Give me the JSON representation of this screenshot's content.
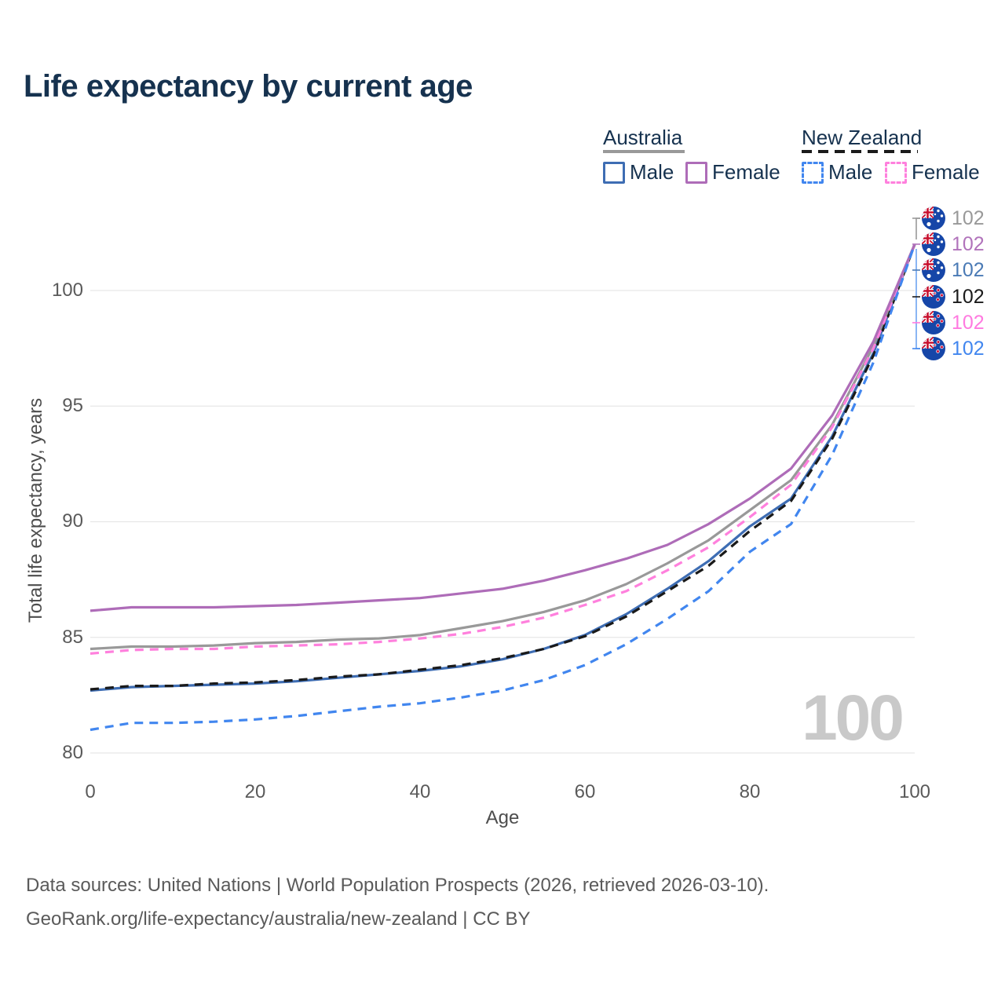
{
  "title": "Life expectancy by current age",
  "legend": {
    "groups": [
      {
        "label": "Australia",
        "line_style": "solid",
        "line_color": "#999999",
        "items": [
          {
            "label": "Male",
            "color": "#3e6db3",
            "dashed": false
          },
          {
            "label": "Female",
            "color": "#ae6cb8",
            "dashed": false
          }
        ]
      },
      {
        "label": "New Zealand",
        "line_style": "dashed",
        "line_color": "#1a1a1a",
        "items": [
          {
            "label": "Male",
            "color": "#4186ef",
            "dashed": true
          },
          {
            "label": "Female",
            "color": "#ff80dd",
            "dashed": true
          }
        ]
      }
    ]
  },
  "axes": {
    "x_label": "Age",
    "y_label": "Total life expectancy, years",
    "x_ticks": [
      "0",
      "20",
      "40",
      "60",
      "80",
      "100"
    ],
    "y_ticks": [
      "100",
      "95",
      "90",
      "85",
      "80"
    ]
  },
  "end_labels": {
    "rows": [
      {
        "flag": "au",
        "series": "Australia",
        "value": "102",
        "color": "#999999"
      },
      {
        "flag": "au",
        "series": "Australia Female",
        "value": "102",
        "color": "#b173bb"
      },
      {
        "flag": "au",
        "series": "Australia Male",
        "value": "102",
        "color": "#4a7ab5"
      },
      {
        "flag": "nz",
        "series": "New Zealand",
        "value": "102",
        "color": "#1a1a1a"
      },
      {
        "flag": "nz",
        "series": "New Zealand Female",
        "value": "102",
        "color": "#ff7ae0"
      },
      {
        "flag": "nz",
        "series": "New Zealand Male",
        "value": "102",
        "color": "#4186ef"
      }
    ]
  },
  "watermark": "100",
  "footer": {
    "line1": "Data sources: United Nations | World Population Prospects (2026, retrieved 2026-03-10).",
    "line2": "GeoRank.org/life-expectancy/australia/new-zealand | CC BY"
  },
  "chart_data": {
    "type": "line",
    "title": "Life expectancy by current age",
    "xlabel": "Age",
    "ylabel": "Total life expectancy, years",
    "xlim": [
      0,
      100
    ],
    "ylim": [
      79.5,
      103
    ],
    "xticks": [
      0,
      20,
      40,
      60,
      80,
      100
    ],
    "yticks": [
      80,
      85,
      90,
      95,
      100
    ],
    "grid": "horizontal-only",
    "legend_position": "top-right",
    "x": [
      0,
      5,
      10,
      15,
      20,
      25,
      30,
      35,
      40,
      45,
      50,
      55,
      60,
      65,
      70,
      75,
      80,
      85,
      90,
      95,
      100
    ],
    "series": [
      {
        "name": "Australia Male",
        "color": "#3e6db3",
        "dashed": false,
        "values": [
          82.7,
          82.85,
          82.9,
          82.95,
          83.0,
          83.1,
          83.25,
          83.4,
          83.55,
          83.75,
          84.05,
          84.5,
          85.1,
          86.0,
          87.1,
          88.3,
          89.8,
          91.0,
          93.7,
          97.3,
          102
        ]
      },
      {
        "name": "New Zealand",
        "color": "#1a1a1a",
        "dashed": true,
        "values": [
          82.75,
          82.9,
          82.9,
          83.0,
          83.05,
          83.15,
          83.3,
          83.4,
          83.6,
          83.8,
          84.1,
          84.5,
          85.05,
          85.9,
          87.0,
          88.1,
          89.6,
          90.9,
          93.6,
          97.2,
          102
        ]
      },
      {
        "name": "Australia",
        "color": "#999999",
        "dashed": false,
        "values": [
          84.5,
          84.6,
          84.6,
          84.65,
          84.75,
          84.8,
          84.9,
          84.95,
          85.1,
          85.4,
          85.7,
          86.1,
          86.6,
          87.3,
          88.2,
          89.2,
          90.5,
          91.8,
          94.2,
          97.6,
          102
        ]
      },
      {
        "name": "New Zealand Female",
        "color": "#ff80dd",
        "dashed": true,
        "values": [
          84.3,
          84.45,
          84.5,
          84.5,
          84.6,
          84.65,
          84.7,
          84.8,
          84.95,
          85.15,
          85.45,
          85.85,
          86.4,
          87.0,
          87.9,
          88.9,
          90.2,
          91.6,
          94.1,
          97.5,
          102
        ]
      },
      {
        "name": "Australia Female",
        "color": "#ae6cb8",
        "dashed": false,
        "values": [
          86.15,
          86.3,
          86.3,
          86.3,
          86.35,
          86.4,
          86.5,
          86.6,
          86.7,
          86.9,
          87.1,
          87.45,
          87.9,
          88.4,
          89.0,
          89.9,
          91.0,
          92.3,
          94.6,
          97.8,
          102
        ]
      },
      {
        "name": "New Zealand Male",
        "color": "#4186ef",
        "dashed": true,
        "values": [
          81.0,
          81.3,
          81.3,
          81.35,
          81.45,
          81.6,
          81.8,
          82.0,
          82.15,
          82.4,
          82.7,
          83.15,
          83.8,
          84.7,
          85.8,
          87.0,
          88.7,
          89.9,
          92.9,
          96.9,
          102
        ]
      }
    ],
    "end_value": 102
  }
}
